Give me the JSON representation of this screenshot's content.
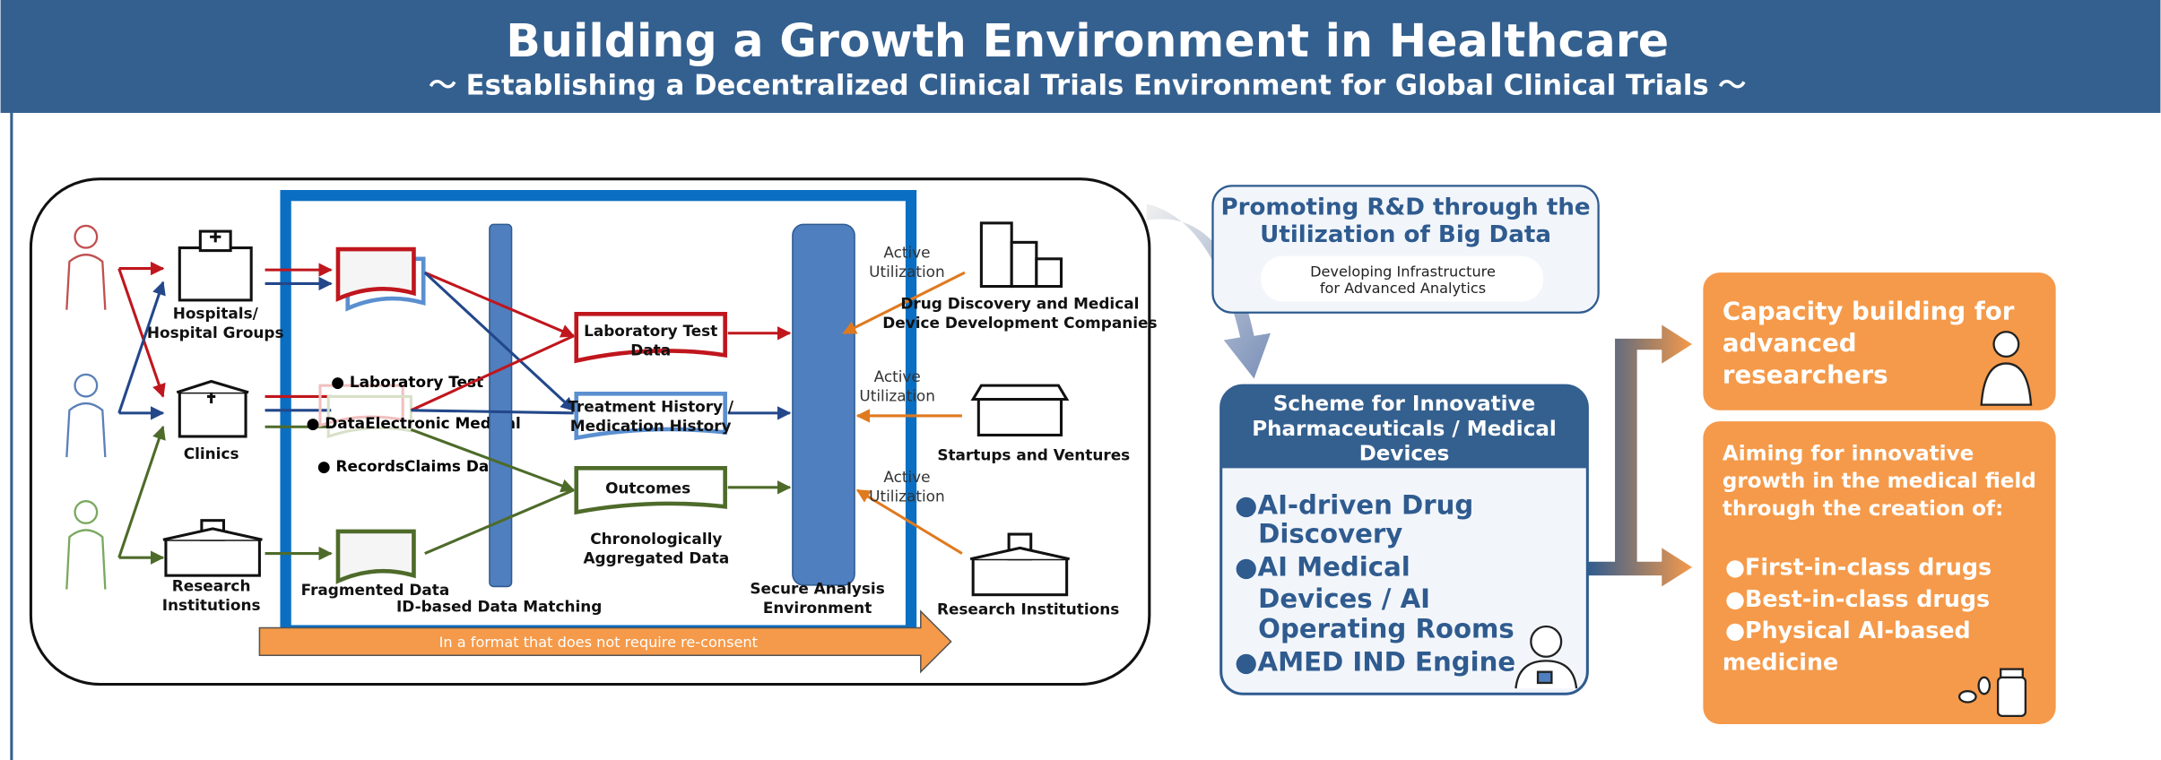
{
  "header": {
    "title": "Building a Growth Environment in Healthcare",
    "subtitle": "～ Establishing a Decentralized Clinical Trials Environment for Global Clinical Trials ～"
  },
  "sources": [
    {
      "lines": [
        "Hospitals/",
        "Hospital Groups"
      ]
    },
    {
      "lines": [
        "Clinics"
      ]
    },
    {
      "lines": [
        "Research",
        "Institutions"
      ]
    }
  ],
  "data_items": [
    "● Laboratory Test",
    "● DataElectronic Medical",
    "● RecordsClaims Data"
  ],
  "fragmented": "Fragmented Data",
  "matching": "ID-based Data Matching",
  "outputs": [
    {
      "lines": [
        "Laboratory Test",
        "Data"
      ]
    },
    {
      "lines": [
        "Treatment History /",
        "Medication History"
      ]
    },
    {
      "lines": [
        "Outcomes"
      ]
    }
  ],
  "aggregated": [
    "Chronologically",
    "Aggregated Data"
  ],
  "secure": [
    "Secure Analysis",
    "Environment"
  ],
  "utilization": [
    [
      "Active",
      "Utilization"
    ],
    [
      "Active",
      "Utilization"
    ],
    [
      "Active",
      "Utilization"
    ]
  ],
  "users": [
    {
      "lines": [
        "Drug Discovery and Medical",
        "Device Development Companies"
      ]
    },
    {
      "lines": [
        "Startups and Ventures"
      ]
    },
    {
      "lines": [
        "Research Institutions"
      ]
    }
  ],
  "consent": "In a format that does not require re-consent",
  "promoting": {
    "title": [
      "Promoting R&D through the",
      "Utilization of Big Data"
    ],
    "sub": [
      "Developing Infrastructure",
      "for Advanced Analytics"
    ]
  },
  "scheme": {
    "title": [
      "Scheme for Innovative",
      "Pharmaceuticals / Medical",
      "Devices"
    ],
    "bullets": [
      [
        "●AI-driven Drug",
        "Discovery"
      ],
      [
        "●AI Medical",
        "Devices / AI",
        "Operating Rooms"
      ],
      [
        "●AMED IND Engine"
      ]
    ]
  },
  "capacity": [
    "Capacity building for",
    "advanced",
    "researchers"
  ],
  "aiming": {
    "intro": [
      "Aiming for innovative",
      "growth in the medical field",
      "through the creation of:"
    ],
    "bullets": [
      [
        "●First-in-class drugs"
      ],
      [
        "●Best-in-class drugs"
      ],
      [
        "●Physical AI-based",
        "medicine"
      ]
    ]
  }
}
